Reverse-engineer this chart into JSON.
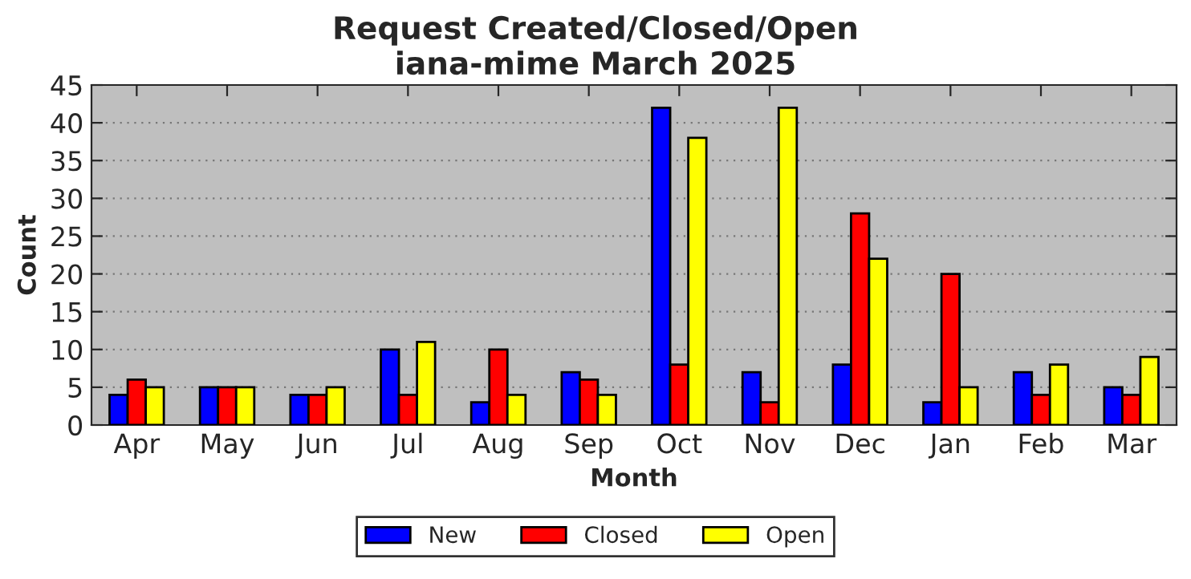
{
  "chart_data": {
    "type": "bar",
    "title": "Request Created/Closed/Open",
    "subtitle": "iana-mime March 2025",
    "xlabel": "Month",
    "ylabel": "Count",
    "categories": [
      "Apr",
      "May",
      "Jun",
      "Jul",
      "Aug",
      "Sep",
      "Oct",
      "Nov",
      "Dec",
      "Jan",
      "Feb",
      "Mar"
    ],
    "series": [
      {
        "name": "New",
        "color": "#0000ff",
        "values": [
          4,
          5,
          4,
          10,
          3,
          7,
          42,
          7,
          8,
          3,
          7,
          5
        ]
      },
      {
        "name": "Closed",
        "color": "#ff0000",
        "values": [
          6,
          5,
          4,
          4,
          10,
          6,
          8,
          3,
          28,
          20,
          4,
          4
        ]
      },
      {
        "name": "Open",
        "color": "#ffff00",
        "values": [
          5,
          5,
          5,
          11,
          4,
          4,
          38,
          42,
          22,
          5,
          8,
          9
        ]
      }
    ],
    "ylim": [
      0,
      45
    ],
    "yticks": [
      0,
      5,
      10,
      15,
      20,
      25,
      30,
      35,
      40,
      45
    ],
    "grid": "y",
    "legend": "bottom"
  }
}
